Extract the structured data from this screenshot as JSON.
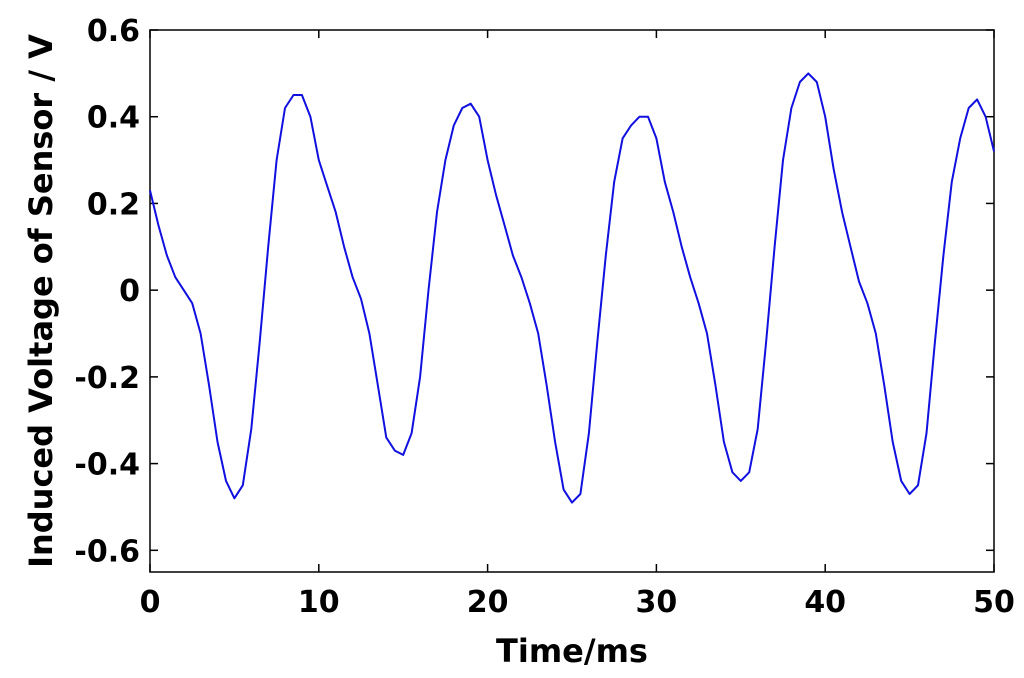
{
  "chart_data": {
    "type": "line",
    "title": "",
    "xlabel": "Time/ms",
    "ylabel": "Induced Voltage of Sensor / V",
    "xlim": [
      0,
      50
    ],
    "ylim": [
      -0.65,
      0.6
    ],
    "xticks": [
      0,
      10,
      20,
      30,
      40,
      50
    ],
    "xtick_labels": [
      "0",
      "10",
      "20",
      "30",
      "40",
      "50"
    ],
    "yticks": [
      -0.6,
      -0.4,
      -0.2,
      0,
      0.2,
      0.4,
      0.6
    ],
    "ytick_labels": [
      "-0.6",
      "-0.4",
      "-0.2",
      "0",
      "0.2",
      "0.4",
      "0.6"
    ],
    "grid": false,
    "legend": "none",
    "line_color": "#1010e0",
    "series": [
      {
        "x": [
          0,
          0.5,
          1,
          1.5,
          2,
          2.5,
          3,
          3.5,
          4,
          4.5,
          5,
          5.5,
          6,
          6.5,
          7,
          7.5,
          8,
          8.5,
          9,
          9.5,
          10,
          10.5,
          11,
          11.5,
          12,
          12.5,
          13,
          13.5,
          14,
          14.5,
          15,
          15.5,
          16,
          16.5,
          17,
          17.5,
          18,
          18.5,
          19,
          19.5,
          20,
          20.5,
          21,
          21.5,
          22,
          22.5,
          23,
          23.5,
          24,
          24.5,
          25,
          25.5,
          26,
          26.5,
          27,
          27.5,
          28,
          28.5,
          29,
          29.5,
          30,
          30.5,
          31,
          31.5,
          32,
          32.5,
          33,
          33.5,
          34,
          34.5,
          35,
          35.5,
          36,
          36.5,
          37,
          37.5,
          38,
          38.5,
          39,
          39.5,
          40,
          40.5,
          41,
          41.5,
          42,
          42.5,
          43,
          43.5,
          44,
          44.5,
          45,
          45.5,
          46,
          46.5,
          47,
          47.5,
          48,
          48.5,
          49,
          49.5,
          50
        ],
        "y": [
          0.23,
          0.15,
          0.08,
          0.03,
          0.0,
          -0.03,
          -0.1,
          -0.22,
          -0.35,
          -0.44,
          -0.48,
          -0.45,
          -0.32,
          -0.12,
          0.1,
          0.3,
          0.42,
          0.45,
          0.45,
          0.4,
          0.3,
          0.24,
          0.18,
          0.1,
          0.03,
          -0.02,
          -0.1,
          -0.22,
          -0.34,
          -0.37,
          -0.38,
          -0.33,
          -0.2,
          0.0,
          0.18,
          0.3,
          0.38,
          0.42,
          0.43,
          0.4,
          0.3,
          0.22,
          0.15,
          0.08,
          0.03,
          -0.03,
          -0.1,
          -0.22,
          -0.35,
          -0.46,
          -0.49,
          -0.47,
          -0.33,
          -0.12,
          0.08,
          0.25,
          0.35,
          0.38,
          0.4,
          0.4,
          0.35,
          0.25,
          0.18,
          0.1,
          0.03,
          -0.03,
          -0.1,
          -0.22,
          -0.35,
          -0.42,
          -0.44,
          -0.42,
          -0.32,
          -0.12,
          0.1,
          0.3,
          0.42,
          0.48,
          0.5,
          0.48,
          0.4,
          0.28,
          0.18,
          0.1,
          0.02,
          -0.03,
          -0.1,
          -0.22,
          -0.35,
          -0.44,
          -0.47,
          -0.45,
          -0.33,
          -0.12,
          0.08,
          0.25,
          0.35,
          0.42,
          0.44,
          0.4,
          0.32
        ]
      }
    ]
  }
}
